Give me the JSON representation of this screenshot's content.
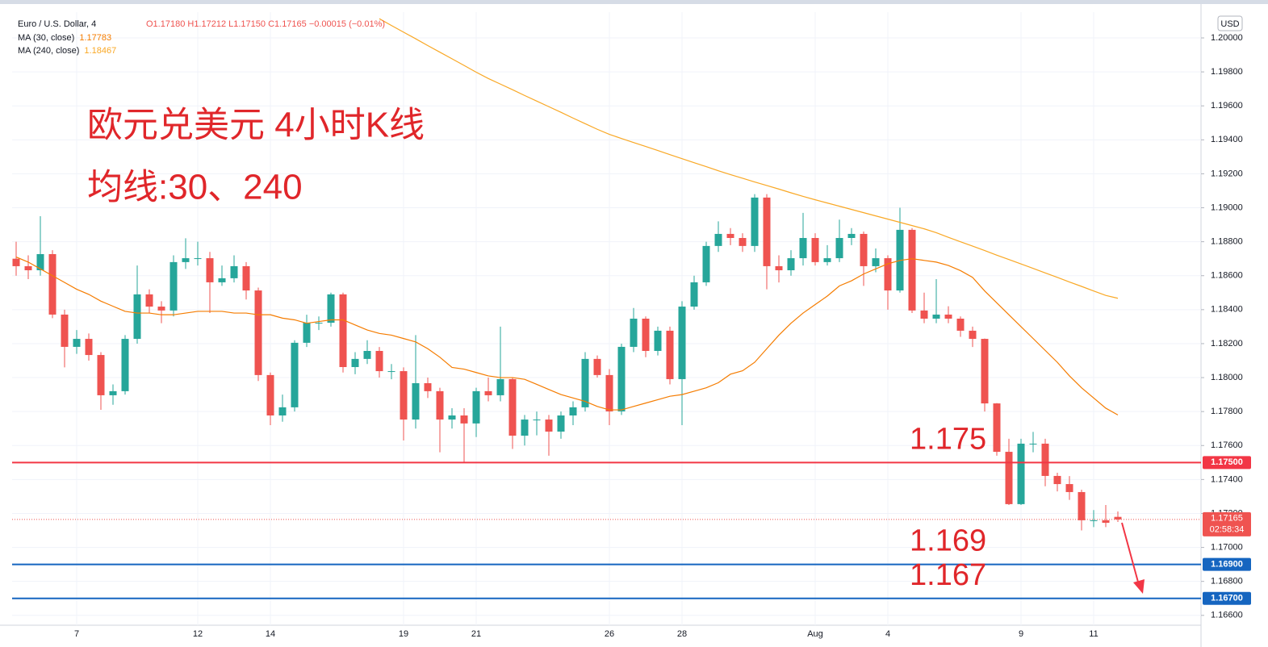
{
  "chart_data": {
    "type": "candlestick",
    "symbol": "Euro / U.S. Dollar, 4",
    "ohlc_text": "O1.17180 H1.17212 L1.17150 C1.17165 −0.00015 (−0.01%)",
    "currency": "USD",
    "annotations": [
      "欧元兑美元 4小时K线",
      "均线:30、240"
    ],
    "up_color": "#26a69a",
    "down_color": "#ef5350",
    "categories": [
      null,
      null,
      null,
      null,
      null,
      "7",
      null,
      null,
      null,
      null,
      null,
      null,
      null,
      null,
      null,
      "12",
      null,
      null,
      null,
      null,
      null,
      "14",
      null,
      null,
      null,
      null,
      null,
      null,
      null,
      null,
      null,
      null,
      "19",
      null,
      null,
      null,
      null,
      null,
      "21",
      null,
      null,
      null,
      null,
      null,
      null,
      null,
      null,
      null,
      null,
      "26",
      null,
      null,
      null,
      null,
      null,
      "28",
      null,
      null,
      null,
      null,
      null,
      null,
      null,
      null,
      null,
      null,
      "Aug",
      null,
      null,
      null,
      null,
      null,
      "4",
      null,
      null,
      null,
      null,
      null,
      null,
      null,
      null,
      null,
      null,
      "9",
      null,
      null,
      null,
      null,
      null,
      "11",
      null,
      null
    ],
    "open": [
      1.187,
      1.18656,
      1.18632,
      1.18727,
      1.18371,
      1.18181,
      1.18228,
      1.18133,
      1.17896,
      1.1792,
      1.18228,
      1.1849,
      1.18418,
      1.18395,
      1.1868,
      1.18703,
      1.18703,
      1.18561,
      1.18585,
      1.18656,
      1.18513,
      1.18015,
      1.17777,
      1.17825,
      1.18205,
      1.18323,
      1.18323,
      1.1849,
      1.18062,
      1.1811,
      1.18157,
      1.18038,
      1.18038,
      1.17753,
      1.17967,
      1.1792,
      1.17753,
      1.17777,
      1.1773,
      1.1792,
      1.17896,
      1.17991,
      1.17658,
      1.17753,
      1.17753,
      1.17682,
      1.17777,
      1.17825,
      1.1811,
      1.18015,
      1.17801,
      1.18181,
      1.18347,
      1.18157,
      1.18276,
      1.17991,
      1.18418,
      1.18561,
      1.18775,
      1.18846,
      1.18822,
      1.18775,
      1.1906,
      1.18656,
      1.18632,
      1.18703,
      1.18822,
      1.1868,
      1.18703,
      1.18822,
      1.18846,
      1.18656,
      1.18703,
      1.18513,
      1.1887,
      1.18395,
      1.18347,
      1.18371,
      1.18347,
      1.18276,
      1.18228,
      1.17848,
      1.17563,
      1.17255,
      1.17611,
      1.17611,
      1.17421,
      1.17373,
      1.17326,
      1.1716,
      1.1716,
      1.1718
    ],
    "high": [
      1.188,
      1.1872,
      1.1895,
      1.1875,
      1.184,
      1.1828,
      1.1826,
      1.1815,
      1.1796,
      1.1825,
      1.1866,
      1.1852,
      1.1845,
      1.1872,
      1.1882,
      1.188,
      1.1874,
      1.1866,
      1.1872,
      1.1868,
      1.1853,
      1.1803,
      1.179,
      1.1822,
      1.1837,
      1.1836,
      1.185,
      1.185,
      1.1815,
      1.1822,
      1.1818,
      1.1808,
      1.1806,
      1.1825,
      1.18,
      1.1794,
      1.1782,
      1.1782,
      1.1794,
      1.18,
      1.183,
      1.18,
      1.1778,
      1.178,
      1.1778,
      1.178,
      1.1786,
      1.1815,
      1.1813,
      1.1805,
      1.182,
      1.1841,
      1.1836,
      1.183,
      1.183,
      1.1845,
      1.186,
      1.188,
      1.1892,
      1.1888,
      1.1885,
      1.1908,
      1.1908,
      1.1872,
      1.1875,
      1.1897,
      1.1885,
      1.1878,
      1.1893,
      1.1888,
      1.1886,
      1.1876,
      1.1872,
      1.19,
      1.1888,
      1.185,
      1.1858,
      1.1842,
      1.1836,
      1.183,
      1.1823,
      1.1785,
      1.1764,
      1.1764,
      1.1768,
      1.1764,
      1.1744,
      1.1742,
      1.1734,
      1.1722,
      1.1725,
      1.17212
    ],
    "low": [
      1.186,
      1.1858,
      1.186,
      1.1835,
      1.1806,
      1.1814,
      1.181,
      1.1781,
      1.1784,
      1.179,
      1.182,
      1.1838,
      1.1832,
      1.1836,
      1.1864,
      1.1866,
      1.1838,
      1.1854,
      1.1856,
      1.1846,
      1.1798,
      1.1772,
      1.1774,
      1.178,
      1.1818,
      1.1828,
      1.183,
      1.1803,
      1.1802,
      1.1808,
      1.18,
      1.1799,
      1.1763,
      1.177,
      1.1788,
      1.1756,
      1.177,
      1.175,
      1.1765,
      1.1786,
      1.1786,
      1.1758,
      1.176,
      1.1766,
      1.1754,
      1.1764,
      1.1772,
      1.178,
      1.18,
      1.1772,
      1.1778,
      1.1815,
      1.1812,
      1.1813,
      1.1796,
      1.1772,
      1.184,
      1.1854,
      1.1874,
      1.1878,
      1.1874,
      1.1874,
      1.1852,
      1.1856,
      1.186,
      1.1866,
      1.1866,
      1.1866,
      1.1868,
      1.1878,
      1.1854,
      1.1862,
      1.184,
      1.185,
      1.1838,
      1.1832,
      1.1832,
      1.1832,
      1.1824,
      1.1818,
      1.178,
      1.1754,
      1.1725,
      1.1725,
      1.1756,
      1.1736,
      1.1733,
      1.1728,
      1.171,
      1.1712,
      1.1712,
      1.1715
    ],
    "close": [
      1.18656,
      1.18632,
      1.18727,
      1.18371,
      1.18181,
      1.18228,
      1.18133,
      1.17896,
      1.1792,
      1.18228,
      1.1849,
      1.18418,
      1.18395,
      1.1868,
      1.18703,
      1.18703,
      1.18561,
      1.18585,
      1.18656,
      1.18513,
      1.18015,
      1.17777,
      1.17825,
      1.18205,
      1.18323,
      1.18323,
      1.1849,
      1.18062,
      1.1811,
      1.18157,
      1.18038,
      1.18038,
      1.17753,
      1.17967,
      1.1792,
      1.17753,
      1.17777,
      1.1773,
      1.1792,
      1.17896,
      1.17991,
      1.17658,
      1.17753,
      1.17753,
      1.17682,
      1.17777,
      1.17825,
      1.1811,
      1.18015,
      1.17801,
      1.18181,
      1.18347,
      1.18157,
      1.18276,
      1.17991,
      1.18418,
      1.18561,
      1.18775,
      1.18846,
      1.18822,
      1.18775,
      1.1906,
      1.18656,
      1.18632,
      1.18703,
      1.18822,
      1.1868,
      1.18703,
      1.18822,
      1.18846,
      1.18656,
      1.18703,
      1.18513,
      1.1887,
      1.18395,
      1.18347,
      1.18371,
      1.18347,
      1.18276,
      1.18228,
      1.17848,
      1.17563,
      1.17255,
      1.17611,
      1.17611,
      1.17421,
      1.17373,
      1.17326,
      1.1716,
      1.1716,
      1.17145,
      1.17165
    ],
    "series": [
      {
        "name": "MA (30, close)",
        "legend_value": "1.17783",
        "color": "#f57c00",
        "values": [
          1.1871,
          1.1868,
          1.1864,
          1.186,
          1.1856,
          1.1852,
          1.1849,
          1.1845,
          1.1842,
          1.1839,
          1.1838,
          1.1838,
          1.1837,
          1.1837,
          1.1838,
          1.1839,
          1.1839,
          1.1839,
          1.1838,
          1.1838,
          1.1837,
          1.1837,
          1.1835,
          1.1834,
          1.1832,
          1.1833,
          1.1834,
          1.1834,
          1.1831,
          1.1828,
          1.1826,
          1.1825,
          1.1823,
          1.1821,
          1.1817,
          1.1812,
          1.1806,
          1.1805,
          1.1803,
          1.1801,
          1.18,
          1.18,
          1.1799,
          1.1796,
          1.1793,
          1.179,
          1.1788,
          1.1786,
          1.1783,
          1.1781,
          1.1781,
          1.1783,
          1.1785,
          1.1787,
          1.1789,
          1.179,
          1.1792,
          1.1794,
          1.1797,
          1.1802,
          1.1804,
          1.1809,
          1.1817,
          1.1825,
          1.1832,
          1.1838,
          1.1843,
          1.1848,
          1.1854,
          1.1857,
          1.1861,
          1.1864,
          1.1867,
          1.1869,
          1.187,
          1.1869,
          1.1868,
          1.1866,
          1.1863,
          1.1859,
          1.1851,
          1.1844,
          1.1837,
          1.183,
          1.1823,
          1.1816,
          1.1809,
          1.1801,
          1.1794,
          1.1788,
          1.1782,
          1.1778
        ]
      },
      {
        "name": "MA (240, close)",
        "legend_value": "1.18467",
        "color": "#f9a825",
        "values": [
          null,
          null,
          null,
          null,
          null,
          null,
          null,
          null,
          null,
          null,
          null,
          null,
          null,
          null,
          null,
          null,
          null,
          null,
          null,
          null,
          null,
          null,
          null,
          null,
          null,
          null,
          null,
          null,
          null,
          null,
          1.20113,
          1.20073,
          1.20034,
          1.19995,
          1.19955,
          1.19916,
          1.19877,
          1.19838,
          1.19798,
          1.19761,
          1.19728,
          1.19695,
          1.19661,
          1.19628,
          1.19595,
          1.19562,
          1.19528,
          1.19495,
          1.19462,
          1.19432,
          1.19408,
          1.19384,
          1.19361,
          1.19337,
          1.19313,
          1.19289,
          1.19265,
          1.19242,
          1.19218,
          1.19195,
          1.19174,
          1.19152,
          1.19131,
          1.1911,
          1.19088,
          1.19067,
          1.19047,
          1.19028,
          1.19009,
          1.1899,
          1.18971,
          1.18952,
          1.18933,
          1.18914,
          1.18895,
          1.18876,
          1.18853,
          1.18826,
          1.188,
          1.18774,
          1.18748,
          1.18721,
          1.18695,
          1.18669,
          1.18643,
          1.18616,
          1.1859,
          1.18563,
          1.18537,
          1.1851,
          1.18484,
          1.18467
        ]
      }
    ],
    "levels": [
      {
        "value": 1.175,
        "label": "1.17500",
        "annotation": "1.175",
        "color": "#f23645"
      },
      {
        "value": 1.169,
        "label": "1.16900",
        "annotation": "1.169",
        "color": "#1565c0"
      },
      {
        "value": 1.167,
        "label": "1.16700",
        "annotation": "1.167",
        "color": "#1565c0"
      }
    ],
    "last_price": {
      "value": 1.17165,
      "label": "1.17165",
      "countdown": "02:58:34",
      "color": "#ef5350"
    },
    "ylim": [
      1.16542,
      1.20152
    ],
    "yticks": [
      {
        "value": 1.2,
        "label": "1.20000"
      },
      {
        "value": 1.198,
        "label": "1.19800"
      },
      {
        "value": 1.196,
        "label": "1.19600"
      },
      {
        "value": 1.194,
        "label": "1.19400"
      },
      {
        "value": 1.192,
        "label": "1.19200"
      },
      {
        "value": 1.19,
        "label": "1.19000"
      },
      {
        "value": 1.188,
        "label": "1.18800"
      },
      {
        "value": 1.186,
        "label": "1.18600"
      },
      {
        "value": 1.184,
        "label": "1.18400"
      },
      {
        "value": 1.182,
        "label": "1.18200"
      },
      {
        "value": 1.18,
        "label": "1.18000"
      },
      {
        "value": 1.178,
        "label": "1.17800"
      },
      {
        "value": 1.176,
        "label": "1.17600"
      },
      {
        "value": 1.174,
        "label": "1.17400"
      },
      {
        "value": 1.172,
        "label": "1.17200"
      },
      {
        "value": 1.17,
        "label": "1.17000"
      },
      {
        "value": 1.168,
        "label": "1.16800"
      },
      {
        "value": 1.166,
        "label": "1.16600"
      }
    ],
    "grid": true
  }
}
